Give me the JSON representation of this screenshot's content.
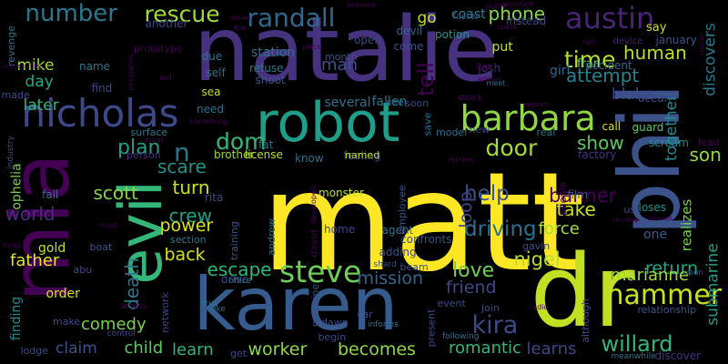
{
  "words": [
    {
      "text": "matt",
      "color": "#fde725"
    },
    {
      "text": "natalie",
      "color": "#46327e"
    },
    {
      "text": "phil",
      "color": "#3b528b"
    },
    {
      "text": "karen",
      "color": "#365c8d"
    },
    {
      "text": "robot",
      "color": "#1f9e89"
    },
    {
      "text": "dr",
      "color": "#c2df23"
    },
    {
      "text": "mia",
      "color": "#440154"
    },
    {
      "text": "evil",
      "color": "#35b779"
    },
    {
      "text": "nicholas",
      "color": "#3e4989"
    },
    {
      "text": "barbara",
      "color": "#90d743"
    },
    {
      "text": "austin",
      "color": "#482475"
    },
    {
      "text": "hammer",
      "color": "#c8e020"
    },
    {
      "text": "steve",
      "color": "#6ece58"
    },
    {
      "text": "randall",
      "color": "#31688e"
    },
    {
      "text": "number",
      "color": "#2a788e"
    },
    {
      "text": "rescue",
      "color": "#a0da39"
    },
    {
      "text": "time",
      "color": "#b5de2b"
    },
    {
      "text": "attempt",
      "color": "#26828e"
    },
    {
      "text": "phone",
      "color": "#86d549"
    },
    {
      "text": "human",
      "color": "#bddf26"
    },
    {
      "text": "door",
      "color": "#a5db36"
    },
    {
      "text": "dom",
      "color": "#35b779"
    },
    {
      "text": "kira",
      "color": "#3e4989"
    },
    {
      "text": "willard",
      "color": "#2fb47c"
    },
    {
      "text": "love",
      "color": "#6ece58"
    },
    {
      "text": "help",
      "color": "#3b528b"
    },
    {
      "text": "driving",
      "color": "#2c728e"
    },
    {
      "text": "nigel",
      "color": "#b5de2b"
    },
    {
      "text": "banner",
      "color": "#440154"
    },
    {
      "text": "show",
      "color": "#5ec962"
    },
    {
      "text": "son",
      "color": "#90d743"
    },
    {
      "text": "scott",
      "color": "#86d549"
    },
    {
      "text": "plan",
      "color": "#1f9e89"
    },
    {
      "text": "n",
      "color": "#2a788e"
    },
    {
      "text": "scare",
      "color": "#21918c"
    },
    {
      "text": "turn",
      "color": "#c8e020"
    },
    {
      "text": "crew",
      "color": "#1fa187"
    },
    {
      "text": "power",
      "color": "#dde318"
    },
    {
      "text": "back",
      "color": "#d8e219"
    },
    {
      "text": "escape",
      "color": "#2fb47c"
    },
    {
      "text": "father",
      "color": "#e5e419"
    },
    {
      "text": "world",
      "color": "#472d7b"
    },
    {
      "text": "mission",
      "color": "#31688e"
    },
    {
      "text": "friend",
      "color": "#3f4788"
    },
    {
      "text": "return",
      "color": "#22a884"
    },
    {
      "text": "marianne",
      "color": "#a0da39"
    },
    {
      "text": "comedy",
      "color": "#7ad151"
    },
    {
      "text": "death",
      "color": "#2a788e"
    },
    {
      "text": "child",
      "color": "#5ec962"
    },
    {
      "text": "learn",
      "color": "#2fb47c"
    },
    {
      "text": "worker",
      "color": "#8fd744"
    },
    {
      "text": "becomes",
      "color": "#90d743"
    },
    {
      "text": "romantic",
      "color": "#35b779"
    },
    {
      "text": "learns",
      "color": "#3f4788"
    },
    {
      "text": "discover",
      "color": "#46327e"
    },
    {
      "text": "mike",
      "color": "#a0da39"
    },
    {
      "text": "day",
      "color": "#22a884"
    },
    {
      "text": "later",
      "color": "#35b779"
    },
    {
      "text": "man",
      "color": "#3b528b"
    },
    {
      "text": "tell",
      "color": "#440154"
    },
    {
      "text": "go",
      "color": "#bddf26"
    },
    {
      "text": "blake",
      "color": "#3e4989"
    },
    {
      "text": "together",
      "color": "#228b8d"
    },
    {
      "text": "discovers",
      "color": "#2a788e"
    },
    {
      "text": "submarine",
      "color": "#1f9e89"
    },
    {
      "text": "realizes",
      "color": "#7ad151"
    },
    {
      "text": "one",
      "color": "#365c8d"
    },
    {
      "text": "gold",
      "color": "#c2df23"
    },
    {
      "text": "order",
      "color": "#d8e219"
    },
    {
      "text": "claim",
      "color": "#3b528b"
    },
    {
      "text": "finding",
      "color": "#228b8d"
    },
    {
      "text": "ophelia",
      "color": "#7ad151"
    },
    {
      "text": "force",
      "color": "#a5db36"
    },
    {
      "text": "take",
      "color": "#c8e020"
    },
    {
      "text": "loop",
      "color": "#3f4788"
    },
    {
      "text": "loses",
      "color": "#21918c"
    },
    {
      "text": "fallen",
      "color": "#2c728e"
    },
    {
      "text": "several",
      "color": "#2c728e"
    },
    {
      "text": "station",
      "color": "#2c728e"
    },
    {
      "text": "coast",
      "color": "#26828e"
    },
    {
      "text": "potion",
      "color": "#21918c"
    },
    {
      "text": "devil",
      "color": "#31688e"
    },
    {
      "text": "open",
      "color": "#3e4989"
    },
    {
      "text": "come",
      "color": "#3b528b"
    },
    {
      "text": "put",
      "color": "#c2df23"
    },
    {
      "text": "josh",
      "color": "#482475"
    },
    {
      "text": "girl",
      "color": "#31688e"
    },
    {
      "text": "fran",
      "color": "#6ece58"
    },
    {
      "text": "accident",
      "color": "#31688e"
    },
    {
      "text": "guard",
      "color": "#5ec962"
    },
    {
      "text": "call",
      "color": "#dde318"
    },
    {
      "text": "scream",
      "color": "#228b8d"
    },
    {
      "text": "lead",
      "color": "#440154"
    },
    {
      "text": "factory",
      "color": "#46327e"
    },
    {
      "text": "ocean",
      "color": "#3f4788"
    },
    {
      "text": "say",
      "color": "#c8e020"
    },
    {
      "text": "january",
      "color": "#3b528b"
    },
    {
      "text": "device",
      "color": "#482475"
    },
    {
      "text": "instead",
      "color": "#3e4989"
    },
    {
      "text": "faster",
      "color": "#3b528b"
    },
    {
      "text": "another",
      "color": "#3e4989"
    },
    {
      "text": "prototype",
      "color": "#440154"
    },
    {
      "text": "name",
      "color": "#2a788e"
    },
    {
      "text": "find",
      "color": "#3e4989"
    },
    {
      "text": "made",
      "color": "#3e4989"
    },
    {
      "text": "revenge",
      "color": "#2c728e"
    },
    {
      "text": "self",
      "color": "#2c728e"
    },
    {
      "text": "due",
      "color": "#2a788e"
    },
    {
      "text": "sea",
      "color": "#c8e020"
    },
    {
      "text": "need",
      "color": "#2c728e"
    },
    {
      "text": "refuse",
      "color": "#2a788e"
    },
    {
      "text": "shoot",
      "color": "#3b528b"
    },
    {
      "text": "month",
      "color": "#3b528b"
    },
    {
      "text": "fat",
      "color": "#2c728e"
    },
    {
      "text": "brother",
      "color": "#a0da39"
    },
    {
      "text": "license",
      "color": "#b5de2b"
    },
    {
      "text": "know",
      "color": "#2c728e"
    },
    {
      "text": "feeling",
      "color": "#3b528b"
    },
    {
      "text": "named",
      "color": "#bddf26"
    },
    {
      "text": "surface",
      "color": "#2a788e"
    },
    {
      "text": "person",
      "color": "#46327e"
    },
    {
      "text": "rita",
      "color": "#3e4989"
    },
    {
      "text": "section",
      "color": "#2a788e"
    },
    {
      "text": "fall",
      "color": "#2c728e"
    },
    {
      "text": "monster",
      "color": "#bddf26"
    },
    {
      "text": "home",
      "color": "#3e4989"
    },
    {
      "text": "agent",
      "color": "#2c728e"
    },
    {
      "text": "adding",
      "color": "#3e4989"
    },
    {
      "text": "confronts",
      "color": "#3b528b"
    },
    {
      "text": "employee",
      "color": "#3b528b"
    },
    {
      "text": "film",
      "color": "#3b528b"
    },
    {
      "text": "gavin",
      "color": "#3e4989"
    },
    {
      "text": "beam",
      "color": "#3b528b"
    },
    {
      "text": "shard",
      "color": "#3e4989"
    },
    {
      "text": "drive",
      "color": "#3e4989"
    },
    {
      "text": "office",
      "color": "#2c728e"
    },
    {
      "text": "network",
      "color": "#3e4989"
    },
    {
      "text": "abu",
      "color": "#3e4989"
    },
    {
      "text": "make",
      "color": "#3e4989"
    },
    {
      "text": "across",
      "color": "#440154"
    },
    {
      "text": "like",
      "color": "#2c728e"
    },
    {
      "text": "car",
      "color": "#3e4989"
    },
    {
      "text": "dawn",
      "color": "#3e4989"
    },
    {
      "text": "begin",
      "color": "#3e4989"
    },
    {
      "text": "informs",
      "color": "#2c728e"
    },
    {
      "text": "join",
      "color": "#3e4989"
    },
    {
      "text": "event",
      "color": "#3e4989"
    },
    {
      "text": "although",
      "color": "#3e4989"
    },
    {
      "text": "relationship",
      "color": "#3b528b"
    },
    {
      "text": "meanwhile",
      "color": "#2c728e"
    },
    {
      "text": "lodge",
      "color": "#3e4989"
    },
    {
      "text": "control",
      "color": "#3e4989"
    },
    {
      "text": "get",
      "color": "#3e4989"
    },
    {
      "text": "present",
      "color": "#3e4989"
    },
    {
      "text": "following",
      "color": "#2c728e"
    },
    {
      "text": "upon",
      "color": "#3e4989"
    },
    {
      "text": "training",
      "color": "#3b528b"
    },
    {
      "text": "andrew",
      "color": "#2c728e"
    },
    {
      "text": "david",
      "color": "#440154"
    },
    {
      "text": "boat",
      "color": "#3b528b"
    },
    {
      "text": "head",
      "color": "#440154"
    },
    {
      "text": "must",
      "color": "#440154"
    },
    {
      "text": "true",
      "color": "#2c728e"
    },
    {
      "text": "machine",
      "color": "#3e4989"
    },
    {
      "text": "industry",
      "color": "#3e4989"
    },
    {
      "text": "people",
      "color": "#440154"
    },
    {
      "text": "use",
      "color": "#3e4989"
    },
    {
      "text": "model",
      "color": "#2c728e"
    },
    {
      "text": "real",
      "color": "#2c728e"
    },
    {
      "text": "save",
      "color": "#2c728e"
    },
    {
      "text": "new",
      "color": "#3e4989"
    },
    {
      "text": "soon",
      "color": "#3e4989"
    },
    {
      "text": "see",
      "color": "#2c728e"
    },
    {
      "text": "attack",
      "color": "#440154"
    },
    {
      "text": "arrive",
      "color": "#440154"
    },
    {
      "text": "lost",
      "color": "#440154"
    },
    {
      "text": "meet",
      "color": "#2c728e"
    },
    {
      "text": "last",
      "color": "#440154"
    },
    {
      "text": "place",
      "color": "#440154"
    },
    {
      "text": "spare",
      "color": "#440154"
    },
    {
      "text": "scene",
      "color": "#440154"
    },
    {
      "text": "assistant",
      "color": "#440154"
    },
    {
      "text": "become",
      "color": "#440154"
    },
    {
      "text": "bar",
      "color": "#440154"
    },
    {
      "text": "series",
      "color": "#440154"
    },
    {
      "text": "prepares",
      "color": "#440154"
    },
    {
      "text": "successfully",
      "color": "#440154"
    },
    {
      "text": "something",
      "color": "#440154"
    },
    {
      "text": "marry",
      "color": "#440154"
    },
    {
      "text": "arrives",
      "color": "#440154"
    },
    {
      "text": "develop",
      "color": "#440154"
    },
    {
      "text": "radio",
      "color": "#440154"
    },
    {
      "text": "appears",
      "color": "#440154"
    },
    {
      "text": "hell",
      "color": "#440154"
    },
    {
      "text": "reason",
      "color": "#440154"
    },
    {
      "text": "develops",
      "color": "#440154"
    },
    {
      "text": "developed",
      "color": "#440154"
    }
  ]
}
